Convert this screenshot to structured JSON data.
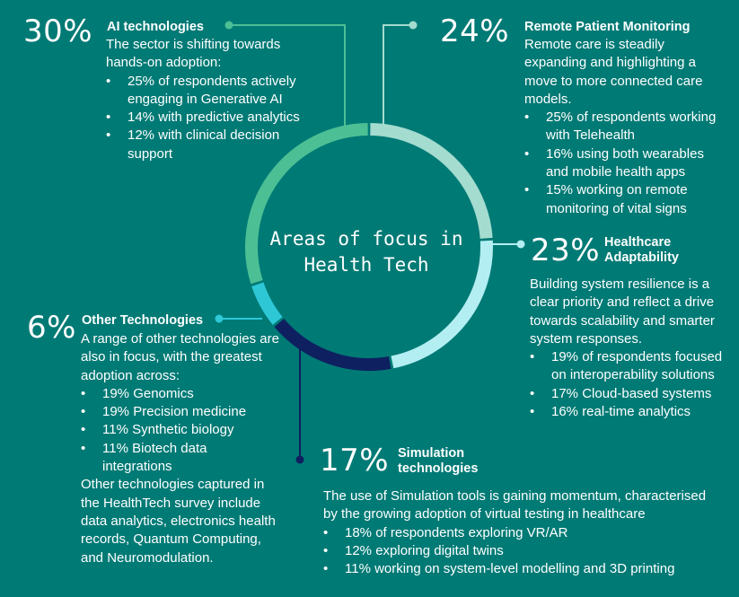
{
  "chart_data": {
    "type": "donut",
    "title": "Areas of focus in Health Tech",
    "segments": [
      {
        "name": "Remote Patient Monitoring",
        "value": 24,
        "label": "24%",
        "color": "#a4dccf"
      },
      {
        "name": "Healthcare Adaptability",
        "value": 23,
        "label": "23%",
        "color": "#b3eef2"
      },
      {
        "name": "Simulation technologies",
        "value": 17,
        "label": "17%",
        "color": "#0e2060"
      },
      {
        "name": "Other Technologies",
        "value": 6,
        "label": "6%",
        "color": "#2ec7d6"
      },
      {
        "name": "AI technologies",
        "value": 30,
        "label": "30%",
        "color": "#4cbf95"
      }
    ]
  },
  "sections": {
    "ai": {
      "pct": "30%",
      "title": "AI technologies",
      "intro": "The sector is shifting towards hands-on adoption:",
      "bullets": [
        "25% of respondents actively engaging in Generative AI",
        "14% with predictive analytics",
        "12% with clinical decision support"
      ]
    },
    "remote": {
      "pct": "24%",
      "title": "Remote Patient Monitoring",
      "intro": "Remote care is steadily expanding and highlighting a move to more connected care models.",
      "bullets": [
        "25% of respondents working with Telehealth",
        "16% using both wearables and mobile health apps",
        "15% working on remote monitoring of vital signs"
      ]
    },
    "adapt": {
      "pct": "23%",
      "title": "Healthcare Adaptability",
      "intro": "Building system resilience is a clear priority and reflect a drive towards scalability and smarter system responses.",
      "bullets": [
        "19% of respondents focused on interoperability solutions",
        "17% Cloud-based systems",
        "16% real-time analytics"
      ]
    },
    "other": {
      "pct": "6%",
      "title": "Other Technologies",
      "intro": "A range of other technologies are also in focus, with the greatest adoption across:",
      "bullets": [
        "19% Genomics",
        "19% Precision medicine",
        "11% Synthetic biology",
        "11% Biotech data integrations"
      ],
      "outro": "Other technologies captured in the HealthTech survey include data analytics, electronics health records, Quantum Computing, and Neuromodulation."
    },
    "sim": {
      "pct": "17%",
      "title": "Simulation technologies",
      "intro": "The use of Simulation tools is gaining momentum, characterised by the growing adoption of virtual testing in healthcare",
      "bullets": [
        "18% of respondents exploring VR/AR",
        "12% exploring digital twins",
        "11% working on system-level modelling and 3D printing"
      ]
    }
  }
}
